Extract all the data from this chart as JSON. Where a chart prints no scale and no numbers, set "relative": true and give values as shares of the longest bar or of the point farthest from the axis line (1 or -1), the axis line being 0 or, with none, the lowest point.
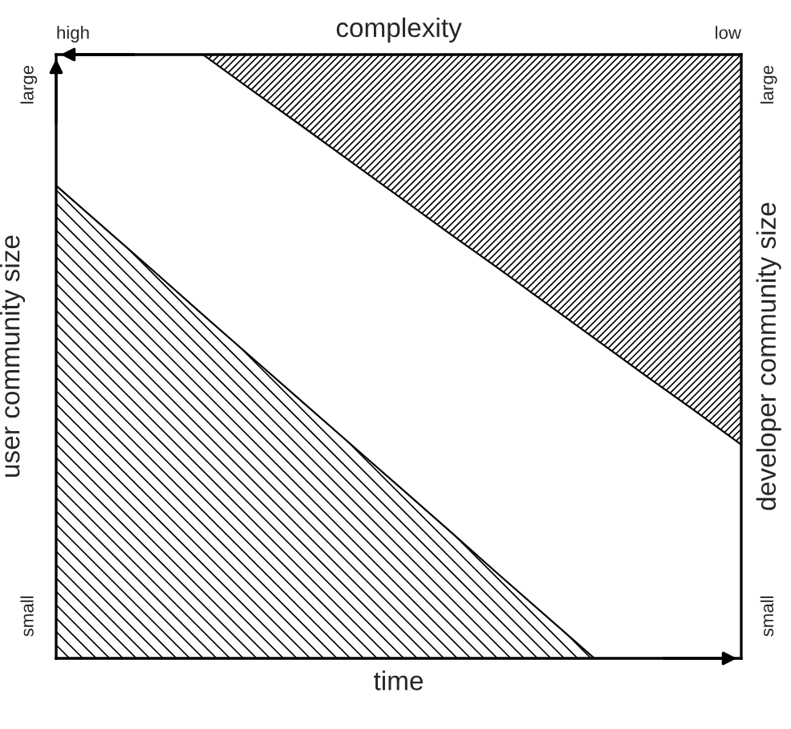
{
  "chart_data": {
    "type": "area",
    "relative": true,
    "xlabel": "time",
    "ylabel": "user community size",
    "y2label": "developer community size",
    "x2label": "complexity",
    "annotations": [
      "high",
      "low",
      "large",
      "small",
      "large",
      "small"
    ],
    "categories": [
      null,
      null,
      null,
      null,
      null,
      null,
      null,
      null,
      null,
      null,
      null,
      null,
      null,
      null,
      null
    ],
    "series": [
      {
        "color": "#000000",
        "values": [
          0.783,
          0.712,
          0.641,
          0.569,
          0.498,
          0.427,
          0.356,
          0.285,
          0.214,
          0.142,
          0.071,
          0,
          0,
          0,
          0
        ]
      },
      {
        "type": "line",
        "color": "#000000",
        "values": [
          null,
          null,
          null,
          1,
          0.941,
          0.883,
          0.824,
          0.765,
          0.706,
          0.648,
          0.589,
          0.53,
          0.471,
          0.413,
          0.354
        ],
        "lower": [
          null,
          null,
          null,
          1,
          0.941,
          0.883,
          0.824,
          0.765,
          0.706,
          0.648,
          0.589,
          0.53,
          0.471,
          0.413,
          0.354
        ],
        "upper": [
          null,
          null,
          null,
          1,
          1,
          1,
          1,
          1,
          1,
          1,
          1,
          1,
          1,
          1,
          1
        ]
      }
    ]
  }
}
